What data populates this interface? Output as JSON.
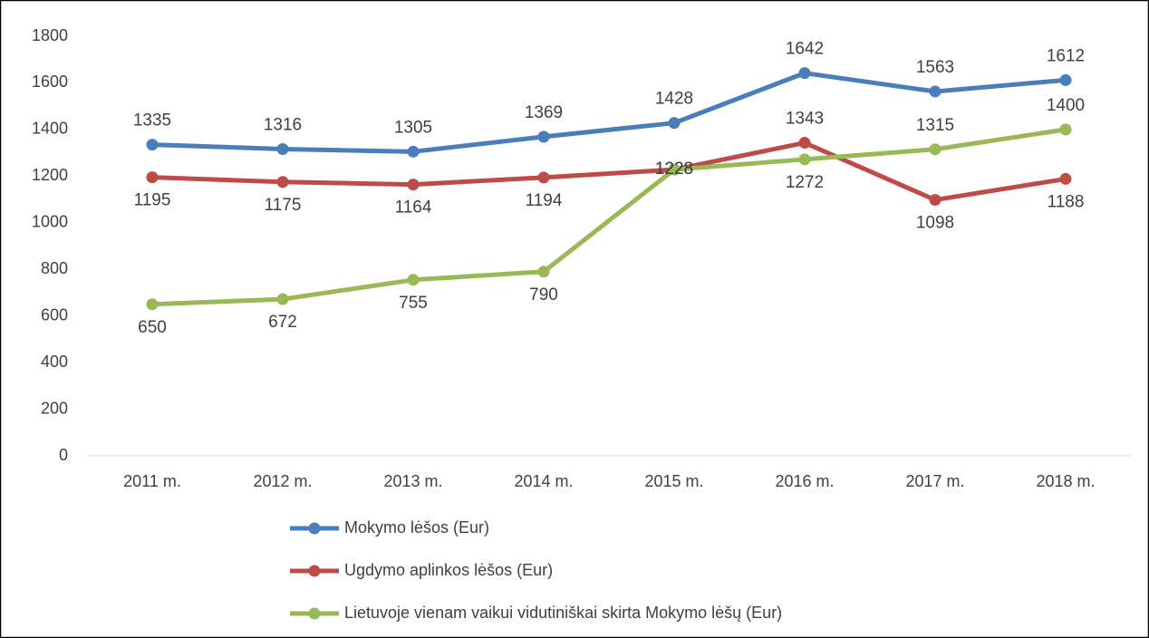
{
  "chart_data": {
    "type": "line",
    "categories": [
      "2011 m.",
      "2012 m.",
      "2013 m.",
      "2014 m.",
      "2015 m.",
      "2016 m.",
      "2017 m.",
      "2018 m."
    ],
    "series": [
      {
        "name": "Mokymo lėšos (Eur)",
        "color": "#4a7ebb",
        "values": [
          1335,
          1316,
          1305,
          1369,
          1428,
          1642,
          1563,
          1612
        ]
      },
      {
        "name": "Ugdymo aplinkos lėšos (Eur)",
        "color": "#be4b48",
        "values": [
          1195,
          1175,
          1164,
          1194,
          1228,
          1343,
          1098,
          1188
        ]
      },
      {
        "name": "Lietuvoje vienam vaikui vidutiniškai skirta Mokymo lėšų (Eur)",
        "color": "#98b954",
        "values": [
          650,
          672,
          755,
          790,
          1228,
          1272,
          1315,
          1400
        ]
      }
    ],
    "ylim": [
      0,
      1800
    ],
    "yticks": [
      0,
      200,
      400,
      600,
      800,
      1000,
      1200,
      1400,
      1600,
      1800
    ],
    "grid": false,
    "legend": "bottom"
  }
}
